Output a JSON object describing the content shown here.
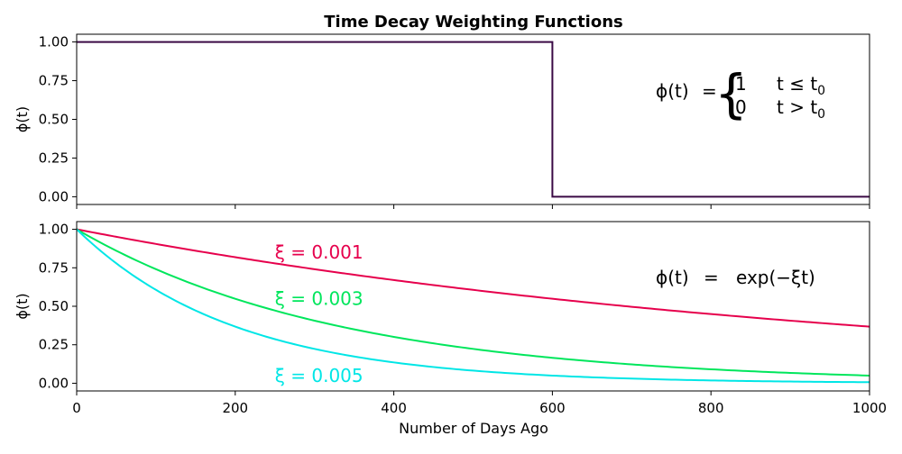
{
  "chart_data": {
    "title": "Time Decay Weighting Functions",
    "xlabel": "Number of Days Ago",
    "xlim": [
      0,
      1000
    ],
    "xticks": [
      "0",
      "200",
      "400",
      "600",
      "800",
      "1000"
    ],
    "panels": [
      {
        "type": "line",
        "ylabel": "ϕ(t)",
        "ylim": [
          -0.05,
          1.05
        ],
        "yticks": [
          "0.00",
          "0.25",
          "0.50",
          "0.75",
          "1.00"
        ],
        "series": [
          {
            "color": "#3b0a45",
            "x": [
              0,
              600,
              600,
              1000
            ],
            "y": [
              1.0,
              1.0,
              0.0,
              0.0
            ]
          }
        ],
        "equation": {
          "lhs": "ϕ(t)",
          "eq": "=",
          "brace": "{",
          "case1_value": "1",
          "case1_cond": "t ≤ t",
          "case2_value": "0",
          "case2_cond": "t > t",
          "sub": "0"
        }
      },
      {
        "type": "line",
        "ylabel": "ϕ(t)",
        "ylim": [
          -0.05,
          1.05
        ],
        "yticks": [
          "0.00",
          "0.25",
          "0.50",
          "0.75",
          "1.00"
        ],
        "series": [
          {
            "xi": 0.001,
            "color": "#e6004c"
          },
          {
            "xi": 0.003,
            "color": "#00e65c"
          },
          {
            "xi": 0.005,
            "color": "#00e6e6"
          }
        ],
        "annotations": [
          {
            "text": "ξ = 0.001",
            "color": "#e6004c",
            "x": 250,
            "y": 0.85
          },
          {
            "text": "ξ = 0.003",
            "color": "#00e65c",
            "x": 250,
            "y": 0.55
          },
          {
            "text": "ξ = 0.005",
            "color": "#00e6e6",
            "x": 250,
            "y": 0.05
          }
        ],
        "equation": {
          "lhs": "ϕ(t)",
          "eq": "=",
          "rhs": "exp(−ξt)"
        }
      }
    ]
  }
}
